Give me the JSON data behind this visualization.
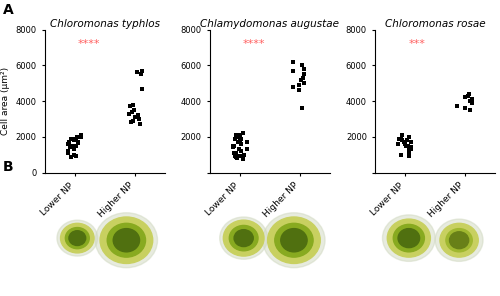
{
  "panel_A_label": "A",
  "panel_B_label": "B",
  "titles": [
    "Chloromonas typhlos",
    "Chlamydomonas augustae",
    "Chloromonas rosae"
  ],
  "ylabel": "Cell area (μm²)",
  "xtick_labels": [
    "Lower NP",
    "Higher NP"
  ],
  "significance": [
    "****",
    "****",
    "***"
  ],
  "sig_color": "#FF6060",
  "ylim": [
    0,
    8000
  ],
  "yticks": [
    0,
    2000,
    4000,
    6000,
    8000
  ],
  "marker": "s",
  "marker_size": 3.5,
  "marker_color": "black",
  "background_color": "white",
  "scatter_data": {
    "typhlos": {
      "lower": [
        1800,
        1650,
        1500,
        1900,
        2000,
        2100,
        1700,
        1400,
        1200,
        1300,
        1600,
        1800,
        2000,
        1900,
        1700,
        1500,
        1100,
        900,
        850,
        1000
      ],
      "higher": [
        2800,
        3200,
        3500,
        3300,
        3100,
        3000,
        3400,
        3700,
        3800,
        4700,
        5700,
        5600,
        5500,
        2700,
        2900
      ]
    },
    "augustae": {
      "lower": [
        2100,
        1800,
        1600,
        1500,
        1700,
        2000,
        2200,
        1900,
        1400,
        1300,
        1200,
        1100,
        1000,
        900,
        850,
        800,
        750,
        900,
        1100,
        1300,
        1500,
        1700,
        1900,
        2100,
        2000
      ],
      "higher": [
        4800,
        5000,
        5200,
        5500,
        5800,
        6200,
        6000,
        5700,
        5300,
        4900,
        4600,
        3600
      ]
    },
    "rosae": {
      "lower": [
        1700,
        1800,
        1900,
        2000,
        1600,
        1500,
        1400,
        1300,
        1200,
        1100,
        1000,
        900,
        1600,
        1700,
        1800,
        1900,
        2100,
        1500,
        1400,
        1300
      ],
      "higher": [
        3700,
        3900,
        4000,
        4100,
        4200,
        4300,
        4400,
        3600,
        3500
      ]
    }
  },
  "micro_bg": "#b8b8b8",
  "cell_outer_color": "#c8d070",
  "cell_mid_color": "#8aaa20",
  "cell_inner_color": "#5a8010"
}
